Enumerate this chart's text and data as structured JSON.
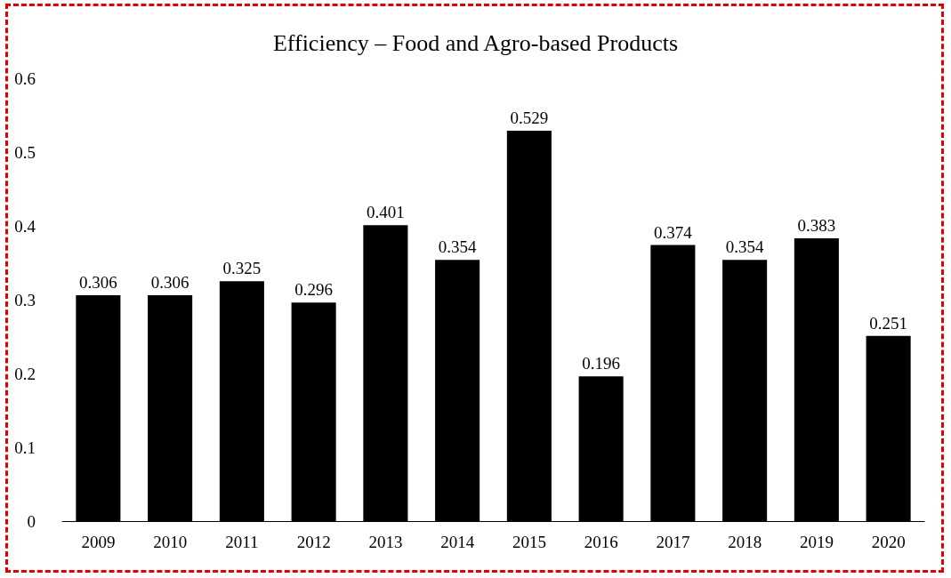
{
  "chart_data": {
    "type": "bar",
    "title": "Efficiency – Food and Agro-based Products",
    "categories": [
      "2009",
      "2010",
      "2011",
      "2012",
      "2013",
      "2014",
      "2015",
      "2016",
      "2017",
      "2018",
      "2019",
      "2020"
    ],
    "values": [
      0.306,
      0.306,
      0.325,
      0.296,
      0.401,
      0.354,
      0.529,
      0.196,
      0.374,
      0.354,
      0.383,
      0.251
    ],
    "color": "#000000",
    "ylim": [
      0,
      0.6
    ],
    "yticks": [
      0,
      0.1,
      0.2,
      0.3,
      0.4,
      0.5,
      0.6
    ],
    "grid": false,
    "data_labels": true
  }
}
